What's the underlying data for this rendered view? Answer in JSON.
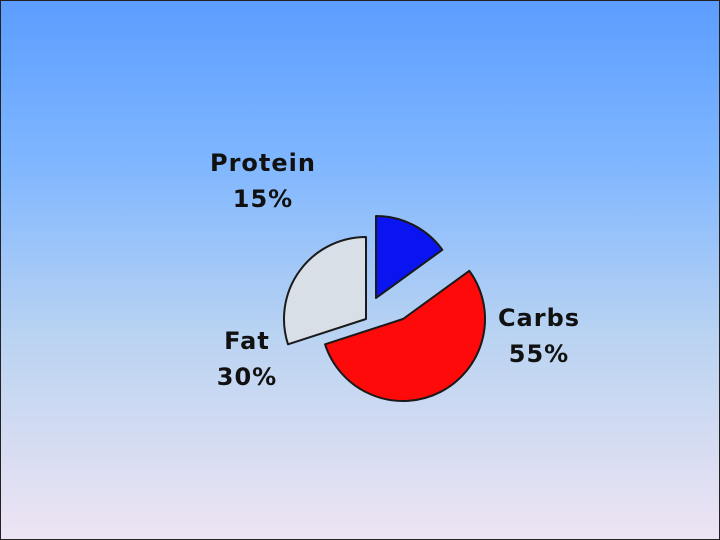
{
  "chart_data": {
    "type": "pie",
    "title": "",
    "slices": [
      {
        "label": "Protein",
        "value": 15,
        "value_text": "15%",
        "color": "#0a14f0"
      },
      {
        "label": "Carbs",
        "value": 55,
        "value_text": "55%",
        "color": "#ff0a0a"
      },
      {
        "label": "Fat",
        "value": 30,
        "value_text": "30%",
        "color": "#d8dfe6"
      }
    ],
    "exploded": true,
    "legend": "none",
    "labels_outside": true
  }
}
